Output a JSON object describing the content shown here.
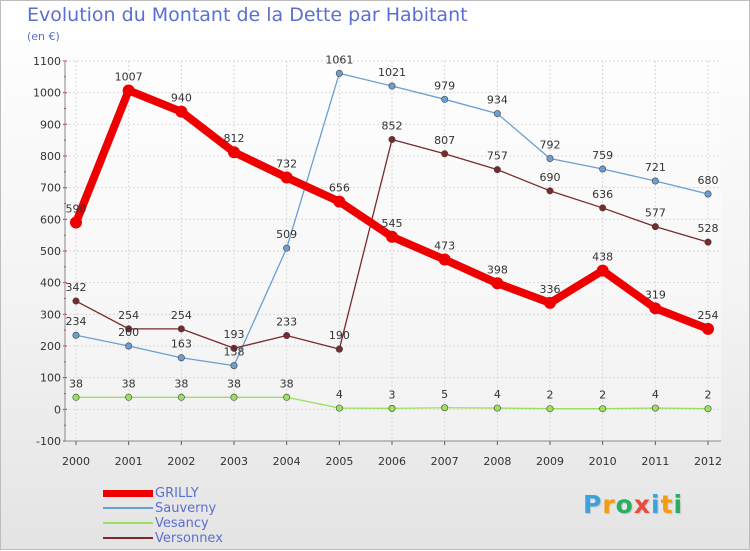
{
  "title": "Evolution du Montant de la Dette par Habitant",
  "subtitle": "(en €)",
  "logo": {
    "letters": [
      "P",
      "r",
      "o",
      "x",
      "i",
      "t",
      "i"
    ],
    "colors": [
      "#3aa2dc",
      "#f39c12",
      "#27ae60",
      "#e74c3c",
      "#3aa2dc",
      "#f39c12",
      "#27ae60"
    ]
  },
  "chart_data": {
    "type": "line",
    "x": [
      "2000",
      "2001",
      "2002",
      "2003",
      "2004",
      "2005",
      "2006",
      "2007",
      "2008",
      "2009",
      "2010",
      "2011",
      "2012"
    ],
    "ylim": [
      -100,
      1100
    ],
    "yticks": [
      "-100",
      "0",
      "100",
      "200",
      "300",
      "400",
      "500",
      "600",
      "700",
      "800",
      "900",
      "1000",
      "1100"
    ],
    "grid": true,
    "legend_position": "bottom-left",
    "series": [
      {
        "name": "GRILLY",
        "color": "#ee0000",
        "values": [
          590,
          1007,
          940,
          812,
          732,
          656,
          545,
          473,
          398,
          336,
          438,
          319,
          254
        ],
        "labels": [
          "590",
          "1007",
          "940",
          "812",
          "732",
          "656",
          "545",
          "473",
          "398",
          "336",
          "438",
          "319",
          "254"
        ]
      },
      {
        "name": "Sauverny",
        "color": "#6b9fd1",
        "values": [
          234,
          200,
          163,
          138,
          509,
          1061,
          1021,
          979,
          934,
          792,
          759,
          721,
          680
        ],
        "labels": [
          "234",
          "200",
          "163",
          "138",
          "509",
          "1061",
          "1021",
          "979",
          "934",
          "792",
          "759",
          "721",
          "680"
        ]
      },
      {
        "name": "Vesancy",
        "color": "#9be060",
        "values": [
          38,
          38,
          38,
          38,
          38,
          4,
          3,
          5,
          4,
          2,
          2,
          4,
          2
        ],
        "labels": [
          "38",
          "38",
          "38",
          "38",
          "38",
          "4",
          "3",
          "5",
          "4",
          "2",
          "2",
          "4",
          "2"
        ]
      },
      {
        "name": "Versonnex",
        "color": "#7a2a2a",
        "values": [
          342,
          254,
          254,
          193,
          233,
          190,
          null,
          null,
          null,
          null,
          null,
          null,
          null
        ],
        "labels": [
          "342",
          "254",
          "254",
          "193",
          "233",
          "190",
          "",
          "",
          "",
          "",
          "",
          "",
          ""
        ]
      },
      {
        "name": "",
        "color": "#7a2a2a",
        "values": [
          null,
          null,
          null,
          null,
          null,
          190,
          852,
          807,
          757,
          690,
          636,
          577,
          528
        ],
        "labels": [
          "",
          "",
          "",
          "",
          "",
          "",
          "852",
          "807",
          "757",
          "690",
          "636",
          "577",
          "528"
        ]
      }
    ]
  }
}
